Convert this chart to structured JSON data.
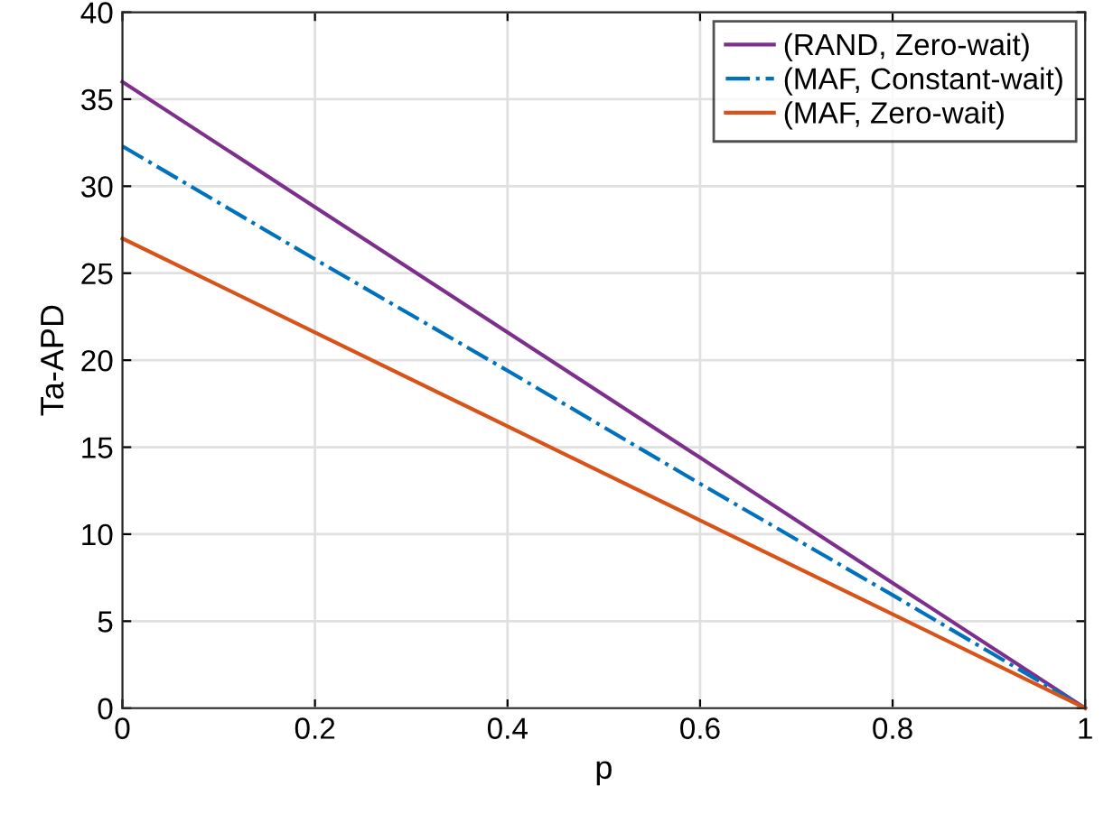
{
  "chart_data": {
    "type": "line",
    "xlabel": "p",
    "ylabel": "Ta-APD",
    "xlim": [
      0,
      1
    ],
    "ylim": [
      0,
      40
    ],
    "xticks": [
      0,
      0.2,
      0.4,
      0.6,
      0.8,
      1
    ],
    "yticks": [
      0,
      5,
      10,
      15,
      20,
      25,
      30,
      35,
      40
    ],
    "grid": true,
    "legend": "top right",
    "marker": "none",
    "series": [
      {
        "name": "(RAND, Zero-wait)",
        "color": "#7e2f8e",
        "line_style": "solid",
        "x": [
          0,
          0.2,
          0.4,
          0.6,
          0.8,
          1
        ],
        "values": [
          36,
          28.8,
          21.6,
          14.4,
          7.2,
          0
        ]
      },
      {
        "name": "(MAF, Constant-wait)",
        "color": "#0072bd",
        "line_style": "dashdot",
        "x": [
          0,
          0.2,
          0.4,
          0.6,
          0.8,
          1
        ],
        "values": [
          32.3,
          25.8,
          19.4,
          12.9,
          6.5,
          0
        ]
      },
      {
        "name": "(MAF, Zero-wait)",
        "color": "#d95319",
        "line_style": "solid",
        "x": [
          0,
          0.2,
          0.4,
          0.6,
          0.8,
          1
        ],
        "values": [
          27,
          21.6,
          16.2,
          10.8,
          5.4,
          0
        ]
      }
    ]
  }
}
